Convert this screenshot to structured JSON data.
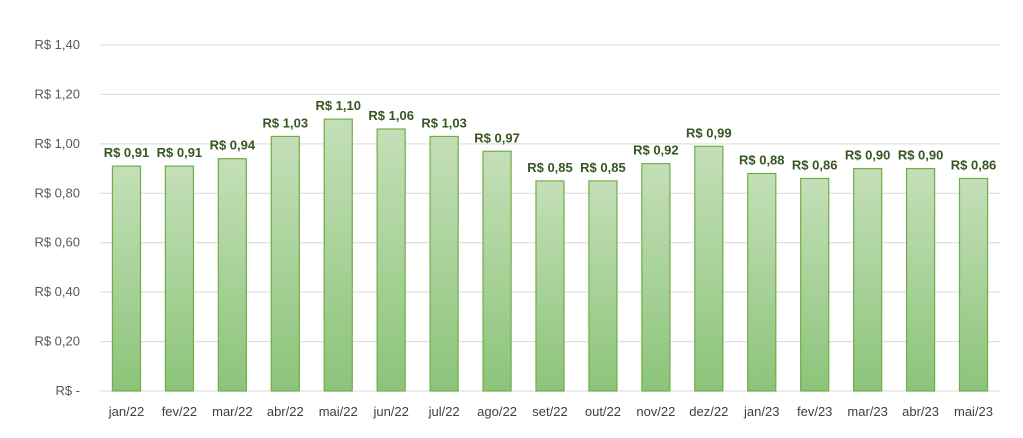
{
  "chart_data": {
    "type": "bar",
    "categories": [
      "jan/22",
      "fev/22",
      "mar/22",
      "abr/22",
      "mai/22",
      "jun/22",
      "jul/22",
      "ago/22",
      "set/22",
      "out/22",
      "nov/22",
      "dez/22",
      "jan/23",
      "fev/23",
      "mar/23",
      "abr/23",
      "mai/23"
    ],
    "values": [
      0.91,
      0.91,
      0.94,
      1.03,
      1.1,
      1.06,
      1.03,
      0.97,
      0.85,
      0.85,
      0.92,
      0.99,
      0.88,
      0.86,
      0.9,
      0.9,
      0.86
    ],
    "data_labels": [
      "R$ 0,91",
      "R$ 0,91",
      "R$ 0,94",
      "R$ 1,03",
      "R$ 1,10",
      "R$ 1,06",
      "R$ 1,03",
      "R$ 0,97",
      "R$ 0,85",
      "R$ 0,85",
      "R$ 0,92",
      "R$ 0,99",
      "R$ 0,88",
      "R$ 0,86",
      "R$ 0,90",
      "R$ 0,90",
      "R$ 0,86"
    ],
    "y_ticks": [
      0,
      0.2,
      0.4,
      0.6,
      0.8,
      1.0,
      1.2,
      1.4
    ],
    "y_tick_labels": [
      "R$ -",
      "R$ 0,20",
      "R$ 0,40",
      "R$ 0,60",
      "R$ 0,80",
      "R$ 1,00",
      "R$ 1,20",
      "R$ 1,40"
    ],
    "ylim": [
      0,
      1.4
    ],
    "grid": true,
    "legend": "none",
    "colors": {
      "bar_top": "#c4dfb8",
      "bar_bottom": "#8cc47a",
      "bar_stroke": "#70ad47",
      "label": "#375623",
      "grid": "#d9d9d9"
    }
  }
}
